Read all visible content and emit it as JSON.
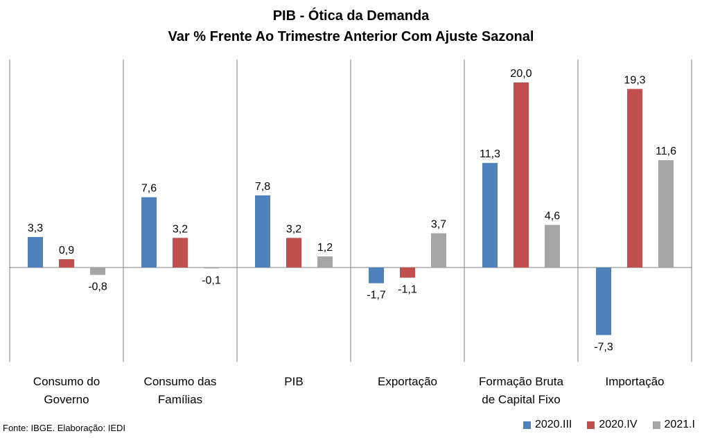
{
  "chart_data": {
    "type": "bar",
    "title": "PIB - Ótica da Demanda",
    "subtitle": "Var % Frente Ao Trimestre Anterior Com Ajuste Sazonal",
    "categories": [
      [
        "Consumo do",
        "Governo"
      ],
      [
        "Consumo das",
        "Famílias"
      ],
      [
        "PIB"
      ],
      [
        "Exportação"
      ],
      [
        "Formação Bruta",
        "de Capital Fixo"
      ],
      [
        "Importação"
      ]
    ],
    "series": [
      {
        "name": "2020.III",
        "color": "#4F81BD",
        "values": [
          3.3,
          7.6,
          7.8,
          -1.7,
          11.3,
          -7.3
        ],
        "labels": [
          "3,3",
          "7,6",
          "7,8",
          "-1,7",
          "11,3",
          "-7,3"
        ]
      },
      {
        "name": "2020.IV",
        "color": "#C0504D",
        "values": [
          0.9,
          3.2,
          3.2,
          -1.1,
          20.0,
          19.3
        ],
        "labels": [
          "0,9",
          "3,2",
          "3,2",
          "-1,1",
          "20,0",
          "19,3"
        ]
      },
      {
        "name": "2021.I",
        "color": "#A5A5A5",
        "values": [
          -0.8,
          -0.1,
          1.2,
          3.7,
          4.6,
          11.6
        ],
        "labels": [
          "-0,8",
          "-0,1",
          "1,2",
          "3,7",
          "4,6",
          "11,6"
        ]
      }
    ],
    "ylim": [
      -10,
      22
    ],
    "grid": false,
    "legend_position": "bottom-right"
  },
  "source": "Fonte: IBGE. Elaboração: IEDI"
}
